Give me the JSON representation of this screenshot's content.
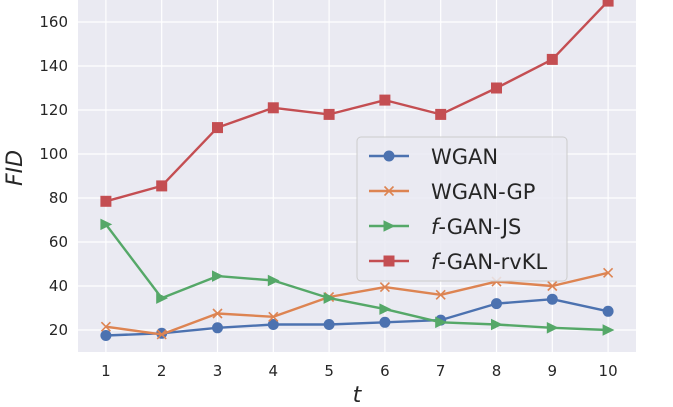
{
  "chart_data": {
    "type": "line",
    "title": "",
    "xlabel": "t",
    "ylabel": "FID",
    "x": [
      1,
      2,
      3,
      4,
      5,
      6,
      7,
      8,
      9,
      10
    ],
    "xlim": [
      0.5,
      10.5
    ],
    "ylim": [
      10,
      170
    ],
    "xticks": [
      1,
      2,
      3,
      4,
      5,
      6,
      7,
      8,
      9,
      10
    ],
    "yticks": [
      20,
      40,
      60,
      80,
      100,
      120,
      140,
      160
    ],
    "grid": true,
    "legend_placement": "center-right",
    "series": [
      {
        "name": "WGAN",
        "color": "#4c72b0",
        "marker": "circle",
        "values": [
          17.5,
          18.5,
          21,
          22.5,
          22.5,
          23.5,
          24.5,
          32,
          34,
          28.5
        ]
      },
      {
        "name": "WGAN-GP",
        "color": "#dd8452",
        "marker": "x",
        "values": [
          21.5,
          18,
          27.5,
          26,
          35,
          39.5,
          36,
          42,
          40,
          46
        ]
      },
      {
        "name": "f-GAN-JS",
        "color": "#55a868",
        "marker": "triangle-right",
        "values": [
          68,
          34.5,
          44.5,
          42.5,
          34.5,
          29.5,
          23.5,
          22.5,
          21,
          20
        ]
      },
      {
        "name": "f-GAN-rvKL",
        "color": "#c44e52",
        "marker": "square",
        "values": [
          78.5,
          85.5,
          112,
          121,
          118,
          124.5,
          118,
          130,
          143,
          169.5
        ]
      }
    ]
  }
}
